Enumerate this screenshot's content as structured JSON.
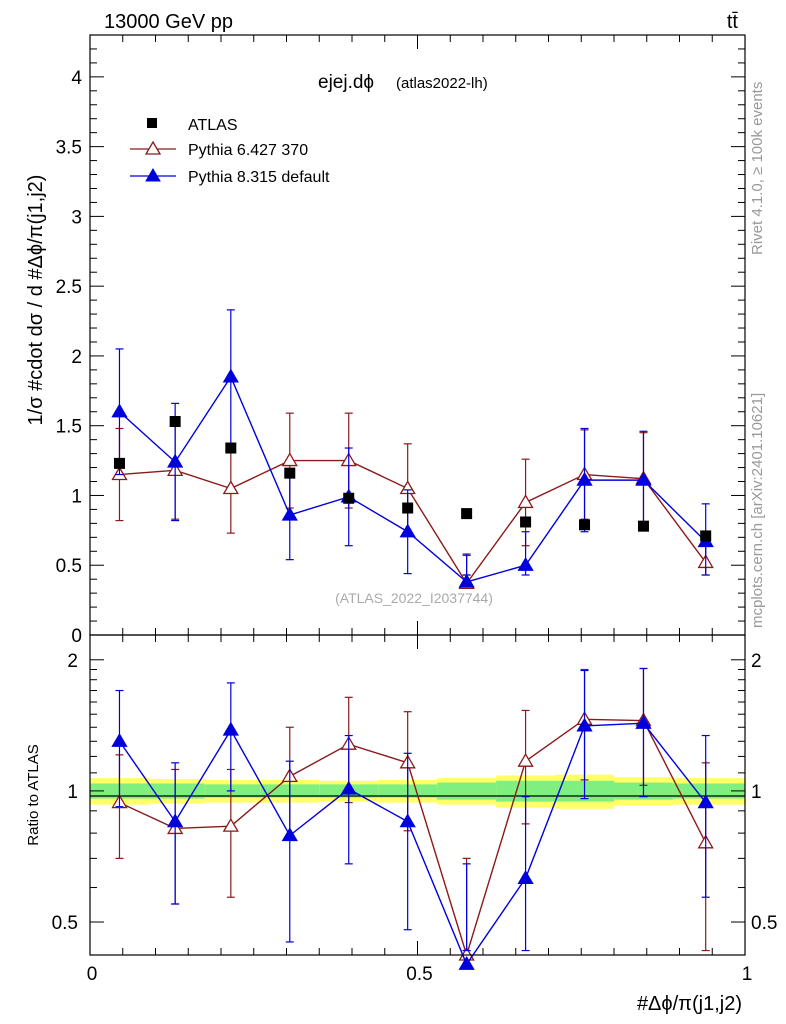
{
  "header": {
    "energy_label": "13000 GeV pp",
    "process_label": "tt̄",
    "watermark_top": "Rivet 4.1.0, ≥ 100k events",
    "watermark_bottom": "mcplots.cern.ch [arXiv:2401.10621]"
  },
  "colors": {
    "atlas": "#000000",
    "py6": "#8b1a1a",
    "py8": "#0000dd",
    "band_inner": "#7ff07f",
    "band_outer": "#ffff66"
  },
  "chart_data": [
    {
      "type": "scatter",
      "panel": "main",
      "title": "ejej.dϕ",
      "title_suffix": "(atlas2022-lh)",
      "analysis_tag": "(ATLAS_2022_I2037744)",
      "ylabel": "1/σ #cdot dσ / d #Δϕ/π(j1,j2)",
      "xlim": [
        0,
        1
      ],
      "ylim": [
        0,
        4.3
      ],
      "yticks": [
        0,
        0.5,
        1,
        1.5,
        2,
        2.5,
        3,
        3.5,
        4
      ],
      "ytick_labels": [
        "0",
        "0.5",
        "1",
        "1.5",
        "2",
        "2.5",
        "3",
        "3.5",
        "4"
      ],
      "x": [
        0.045,
        0.13,
        0.215,
        0.305,
        0.395,
        0.485,
        0.575,
        0.665,
        0.755,
        0.845,
        0.94
      ],
      "series": [
        {
          "name": "ATLAS",
          "marker": "square",
          "values": [
            1.23,
            1.53,
            1.34,
            1.16,
            0.98,
            0.91,
            0.87,
            0.81,
            0.79,
            0.78,
            0.71
          ]
        },
        {
          "name": "Pythia 6.427 370",
          "marker": "open-triangle",
          "values": [
            1.15,
            1.18,
            1.05,
            1.25,
            1.25,
            1.05,
            0.37,
            0.95,
            1.15,
            1.12,
            0.52
          ],
          "err_low": [
            0.33,
            0.35,
            0.32,
            0.34,
            0.34,
            0.32,
            0.2,
            0.31,
            0.32,
            0.33,
            0.2
          ],
          "err_high": [
            0.33,
            0.35,
            0.32,
            0.34,
            0.34,
            0.32,
            0.2,
            0.31,
            0.32,
            0.33,
            0.2
          ]
        },
        {
          "name": "Pythia 8.315 default",
          "marker": "filled-triangle",
          "values": [
            1.6,
            1.24,
            1.85,
            0.86,
            0.99,
            0.74,
            0.38,
            0.5,
            1.11,
            1.11,
            0.67
          ],
          "err_low": [
            0.45,
            0.42,
            0.48,
            0.32,
            0.35,
            0.3,
            0.2,
            0.24,
            0.37,
            0.35,
            0.27
          ],
          "err_high": [
            0.45,
            0.42,
            0.48,
            0.32,
            0.35,
            0.3,
            0.2,
            0.24,
            0.37,
            0.35,
            0.27
          ]
        }
      ]
    },
    {
      "type": "scatter",
      "panel": "ratio",
      "ylabel": "Ratio to ATLAS",
      "xlabel": "#Δϕ/π(j1,j2)",
      "xlim": [
        0,
        1
      ],
      "ylim": [
        0.42,
        2.28
      ],
      "yticks": [
        0.5,
        1,
        2
      ],
      "ytick_labels": [
        "0.5",
        "1",
        "2"
      ],
      "xticks": [
        0,
        0.5,
        1
      ],
      "xtick_labels": [
        "0",
        "0.5",
        "1"
      ],
      "x": [
        0.045,
        0.13,
        0.215,
        0.305,
        0.395,
        0.485,
        0.575,
        0.665,
        0.755,
        0.845,
        0.94
      ],
      "bin_edges": [
        0,
        0.09,
        0.175,
        0.26,
        0.35,
        0.44,
        0.53,
        0.62,
        0.71,
        0.8,
        0.89,
        1.0
      ],
      "band_inner_halfwidth": [
        0.04,
        0.04,
        0.035,
        0.035,
        0.035,
        0.035,
        0.045,
        0.055,
        0.055,
        0.045,
        0.04
      ],
      "band_outer_halfwidth": [
        0.07,
        0.065,
        0.06,
        0.06,
        0.055,
        0.06,
        0.07,
        0.085,
        0.09,
        0.075,
        0.07
      ],
      "series": [
        {
          "name": "Pythia 6.427 370",
          "values": [
            0.94,
            0.82,
            0.83,
            1.08,
            1.28,
            1.16,
            0.42,
            1.17,
            1.46,
            1.45,
            0.76
          ],
          "err_low": [
            0.24,
            0.27,
            0.26,
            0.3,
            0.34,
            0.35,
            0.28,
            0.33,
            0.4,
            0.42,
            0.36
          ],
          "err_high": [
            0.27,
            0.3,
            0.29,
            0.32,
            0.36,
            0.36,
            0.28,
            0.36,
            0.44,
            0.46,
            0.4
          ]
        },
        {
          "name": "Pythia 8.315 default",
          "values": [
            1.3,
            0.85,
            1.38,
            0.79,
            1.01,
            0.85,
            0.4,
            0.63,
            1.41,
            1.43,
            0.94
          ],
          "err_low": [
            0.38,
            0.3,
            0.38,
            0.34,
            0.33,
            0.37,
            0.28,
            0.3,
            0.45,
            0.46,
            0.37
          ],
          "err_high": [
            0.4,
            0.31,
            0.39,
            0.38,
            0.33,
            0.37,
            0.28,
            0.34,
            0.48,
            0.48,
            0.4
          ]
        }
      ]
    }
  ]
}
